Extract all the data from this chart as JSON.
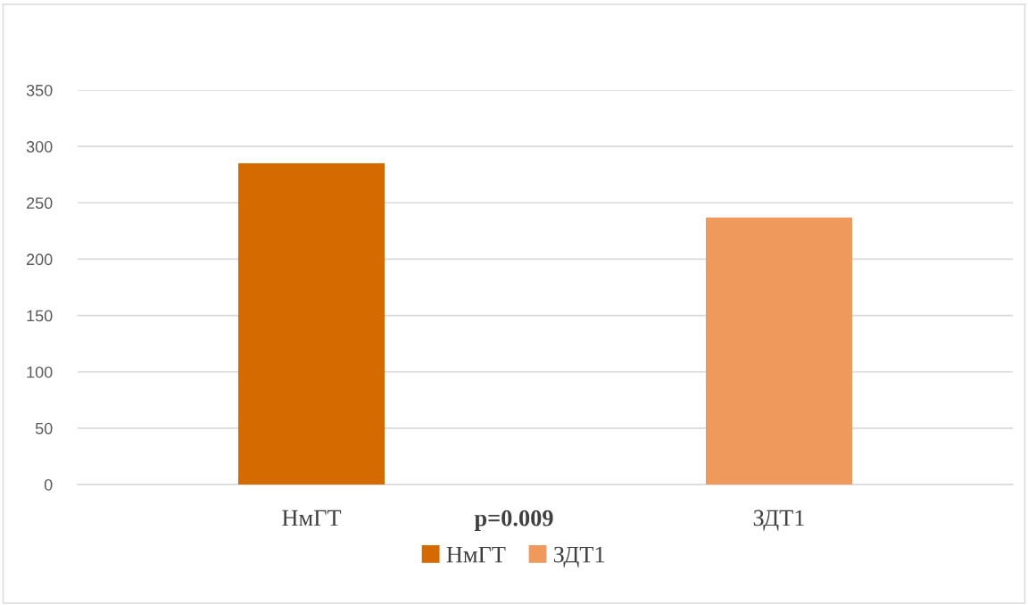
{
  "chart_data": {
    "type": "bar",
    "categories": [
      "НмГТ",
      "ЗДТ1"
    ],
    "series": [
      {
        "name": "НмГТ",
        "color": "#d46a00",
        "values": [
          285,
          null
        ]
      },
      {
        "name": "ЗДТ1",
        "color": "#f0995c",
        "values": [
          null,
          237
        ]
      }
    ],
    "ylim": [
      0,
      350
    ],
    "yticks": [
      0,
      50,
      100,
      150,
      200,
      250,
      300,
      350
    ],
    "grid": "y",
    "legend": "bottom",
    "annotations": [
      "p=0.009"
    ]
  }
}
